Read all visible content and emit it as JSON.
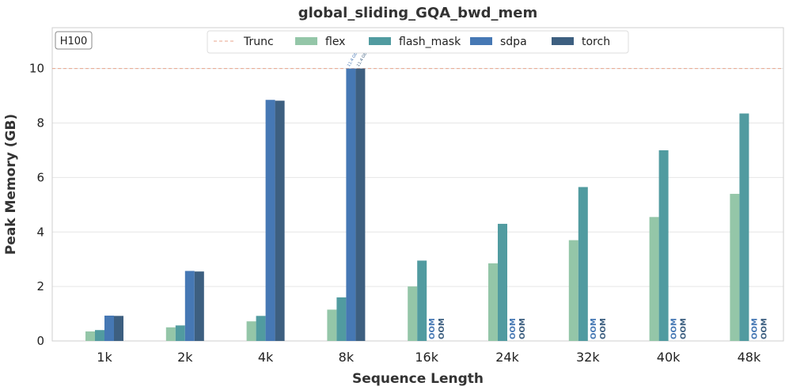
{
  "chart_data": {
    "type": "bar",
    "title": "global_sliding_GQA_bwd_mem",
    "xlabel": "Sequence Length",
    "ylabel": "Peak Memory (GB)",
    "badge": "H100",
    "ylim": [
      0,
      11.5
    ],
    "yticks": [
      0,
      2,
      4,
      6,
      8,
      10
    ],
    "grid": true,
    "legend_position": "top-center",
    "truncation": {
      "label": "Trunc",
      "value": 10,
      "color": "#e8a58c"
    },
    "categories": [
      "1k",
      "2k",
      "4k",
      "8k",
      "16k",
      "24k",
      "32k",
      "40k",
      "48k"
    ],
    "series": [
      {
        "name": "flex",
        "color": "#94c6a8",
        "values": [
          0.35,
          0.5,
          0.72,
          1.15,
          2.0,
          2.85,
          3.7,
          4.55,
          5.4
        ]
      },
      {
        "name": "flash_mask",
        "color": "#519ba0",
        "values": [
          0.4,
          0.57,
          0.92,
          1.6,
          2.95,
          4.3,
          5.65,
          7.0,
          8.35
        ]
      },
      {
        "name": "sdpa",
        "color": "#4678b4",
        "values": [
          0.93,
          2.57,
          8.85,
          10,
          null,
          null,
          null,
          null,
          null
        ]
      },
      {
        "name": "torch",
        "color": "#3d5f80",
        "values": [
          0.92,
          2.55,
          8.82,
          10,
          null,
          null,
          null,
          null,
          null
        ]
      }
    ],
    "bar_labels": [
      {
        "series": "sdpa",
        "category": "8k",
        "text": "11.4 GB"
      },
      {
        "series": "torch",
        "category": "8k",
        "text": "11.4 GB"
      }
    ],
    "oom_label": "OOM"
  }
}
